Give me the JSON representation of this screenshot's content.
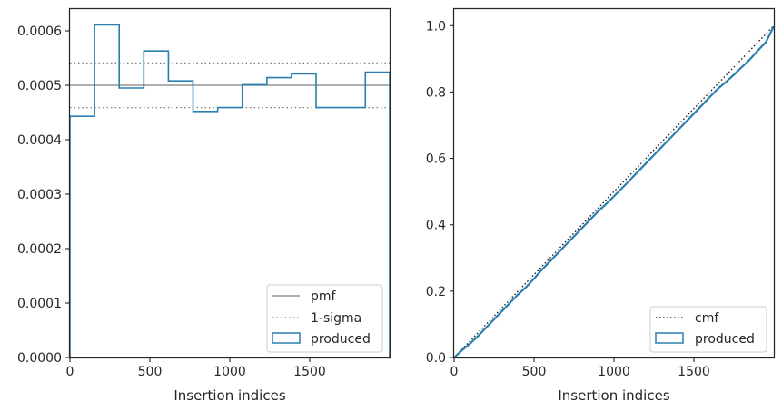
{
  "colors": {
    "produced": "#2a7fb0",
    "pmf": "#808080",
    "sigma": "#808080",
    "cmf": "#111111",
    "frame": "#262626"
  },
  "chart_data": [
    {
      "type": "step",
      "xlabel": "Insertion indices",
      "ylabel": "",
      "xlim": [
        0,
        2000
      ],
      "ylim": [
        0,
        0.00064
      ],
      "x_ticks": [
        0,
        500,
        1000,
        1500
      ],
      "x_tick_labels": [
        "0",
        "500",
        "1000",
        "1500"
      ],
      "y_ticks": [
        0,
        0.0001,
        0.0002,
        0.0003,
        0.0004,
        0.0005,
        0.0006
      ],
      "y_tick_labels": [
        "0.0000",
        "0.0001",
        "0.0002",
        "0.0003",
        "0.0004",
        "0.0005",
        "0.0006"
      ],
      "bin_edges": [
        0,
        154,
        308,
        462,
        616,
        770,
        924,
        1078,
        1232,
        1386,
        1540,
        1694,
        1848,
        2000
      ],
      "values": [
        0.000443,
        0.000611,
        0.000495,
        0.000563,
        0.000508,
        0.000452,
        0.000459,
        0.000501,
        0.000514,
        0.000521,
        0.000459,
        0.000459,
        0.000524
      ],
      "pmf": 0.0005,
      "sigma_band": [
        0.000459,
        0.000541
      ],
      "grid": false,
      "legend_position": "lower right",
      "legend": [
        "pmf",
        "1-sigma",
        "produced"
      ]
    },
    {
      "type": "line",
      "xlabel": "Insertion indices",
      "ylabel": "",
      "xlim": [
        0,
        2000
      ],
      "ylim": [
        0,
        1.05
      ],
      "x_ticks": [
        0,
        500,
        1000,
        1500
      ],
      "x_tick_labels": [
        "0",
        "500",
        "1000",
        "1500"
      ],
      "y_ticks": [
        0,
        0.2,
        0.4,
        0.6,
        0.8,
        1.0
      ],
      "y_tick_labels": [
        "0.0",
        "0.2",
        "0.4",
        "0.6",
        "0.8",
        "1.0"
      ],
      "series": [
        {
          "name": "cmf",
          "x": [
            0,
            2000
          ],
          "y": [
            0,
            1.0
          ]
        },
        {
          "name": "produced",
          "x": [
            0,
            50,
            100,
            150,
            200,
            250,
            300,
            350,
            400,
            450,
            500,
            550,
            600,
            650,
            700,
            750,
            800,
            850,
            900,
            950,
            1000,
            1050,
            1100,
            1150,
            1200,
            1250,
            1300,
            1350,
            1400,
            1450,
            1500,
            1550,
            1600,
            1650,
            1700,
            1750,
            1800,
            1850,
            1900,
            1950,
            2000
          ],
          "y": [
            0,
            0.022,
            0.042,
            0.065,
            0.09,
            0.115,
            0.14,
            0.165,
            0.19,
            0.212,
            0.238,
            0.265,
            0.29,
            0.315,
            0.34,
            0.365,
            0.39,
            0.415,
            0.44,
            0.462,
            0.486,
            0.51,
            0.535,
            0.56,
            0.585,
            0.61,
            0.635,
            0.66,
            0.685,
            0.71,
            0.735,
            0.76,
            0.785,
            0.81,
            0.83,
            0.852,
            0.875,
            0.898,
            0.925,
            0.95,
            0.998
          ]
        }
      ],
      "grid": false,
      "legend_position": "lower right",
      "legend": [
        "cmf",
        "produced"
      ]
    }
  ]
}
